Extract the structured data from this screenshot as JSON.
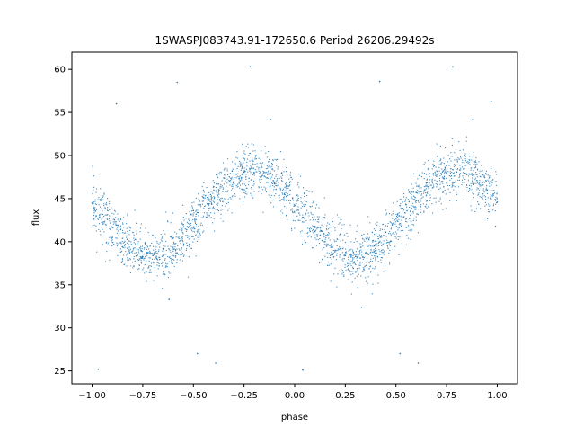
{
  "chart_data": {
    "type": "scatter",
    "title": "1SWASPJ083743.91-172650.6 Period 26206.29492s",
    "xlabel": "phase",
    "ylabel": "flux",
    "xlim": [
      -1.1,
      1.1
    ],
    "ylim": [
      23.5,
      62.0
    ],
    "xticks": [
      -1.0,
      -0.75,
      -0.5,
      -0.25,
      0.0,
      0.25,
      0.5,
      0.75,
      1.0
    ],
    "xtick_labels": [
      "−1.00",
      "−0.75",
      "−0.50",
      "−0.25",
      "0.00",
      "0.25",
      "0.50",
      "0.75",
      "1.00"
    ],
    "yticks": [
      25,
      30,
      35,
      40,
      45,
      50,
      55,
      60
    ],
    "ytick_labels": [
      "25",
      "30",
      "35",
      "40",
      "45",
      "50",
      "55",
      "60"
    ],
    "grid": false,
    "legend": "none",
    "marker_color": "#1f77b4",
    "model": {
      "description": "phase-folded sinusoidal light curve, two cycles over phase -1 to 1",
      "mean_flux": 43.2,
      "amplitude": 4.9,
      "peak_phases": [
        -0.2,
        0.8
      ],
      "trough_phases": [
        -0.7,
        0.3
      ],
      "scatter_sigma": 1.5
    },
    "points": [
      {
        "x": -1.0,
        "y": 44.5
      },
      {
        "x": -0.98,
        "y": 43.0
      },
      {
        "x": -0.95,
        "y": 42.1
      },
      {
        "x": -0.9,
        "y": 40.5
      },
      {
        "x": -0.85,
        "y": 39.4
      },
      {
        "x": -0.8,
        "y": 38.6
      },
      {
        "x": -0.75,
        "y": 38.3
      },
      {
        "x": -0.7,
        "y": 38.4
      },
      {
        "x": -0.65,
        "y": 39.2
      },
      {
        "x": -0.6,
        "y": 40.4
      },
      {
        "x": -0.55,
        "y": 42.0
      },
      {
        "x": -0.5,
        "y": 43.6
      },
      {
        "x": -0.45,
        "y": 45.1
      },
      {
        "x": -0.4,
        "y": 46.4
      },
      {
        "x": -0.35,
        "y": 47.4
      },
      {
        "x": -0.3,
        "y": 47.9
      },
      {
        "x": -0.25,
        "y": 48.1
      },
      {
        "x": -0.2,
        "y": 48.0
      },
      {
        "x": -0.15,
        "y": 47.6
      },
      {
        "x": -0.1,
        "y": 46.8
      },
      {
        "x": -0.05,
        "y": 45.5
      },
      {
        "x": 0.0,
        "y": 44.2
      },
      {
        "x": 0.05,
        "y": 42.7
      },
      {
        "x": 0.1,
        "y": 41.2
      },
      {
        "x": 0.15,
        "y": 40.0
      },
      {
        "x": 0.2,
        "y": 39.0
      },
      {
        "x": 0.25,
        "y": 38.4
      },
      {
        "x": 0.3,
        "y": 38.3
      },
      {
        "x": 0.35,
        "y": 38.7
      },
      {
        "x": 0.4,
        "y": 39.7
      },
      {
        "x": 0.45,
        "y": 41.1
      },
      {
        "x": 0.5,
        "y": 42.7
      },
      {
        "x": 0.55,
        "y": 44.3
      },
      {
        "x": 0.6,
        "y": 45.7
      },
      {
        "x": 0.65,
        "y": 46.8
      },
      {
        "x": 0.7,
        "y": 47.6
      },
      {
        "x": 0.75,
        "y": 48.0
      },
      {
        "x": 0.8,
        "y": 48.1
      },
      {
        "x": 0.85,
        "y": 47.8
      },
      {
        "x": 0.9,
        "y": 47.1
      },
      {
        "x": 0.95,
        "y": 46.0
      },
      {
        "x": 1.0,
        "y": 44.6
      }
    ],
    "outliers": [
      {
        "x": -0.97,
        "y": 25.2
      },
      {
        "x": -0.88,
        "y": 56.0
      },
      {
        "x": -0.62,
        "y": 33.3
      },
      {
        "x": -0.58,
        "y": 58.5
      },
      {
        "x": -0.48,
        "y": 27.0
      },
      {
        "x": -0.39,
        "y": 25.9
      },
      {
        "x": -0.22,
        "y": 60.3
      },
      {
        "x": -0.12,
        "y": 54.2
      },
      {
        "x": 0.04,
        "y": 25.1
      },
      {
        "x": 0.33,
        "y": 32.4
      },
      {
        "x": 0.42,
        "y": 58.6
      },
      {
        "x": 0.52,
        "y": 27.0
      },
      {
        "x": 0.61,
        "y": 25.9
      },
      {
        "x": 0.78,
        "y": 60.3
      },
      {
        "x": 0.88,
        "y": 54.2
      },
      {
        "x": 0.97,
        "y": 56.3
      }
    ]
  }
}
